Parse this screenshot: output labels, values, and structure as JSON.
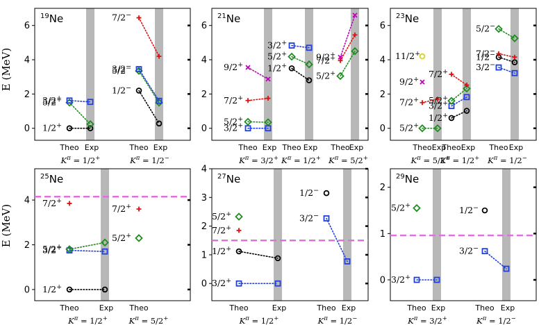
{
  "figure": {
    "ylabel": "E (MeV)",
    "colors": {
      "black": "#000000",
      "blue": "#1f3fe0",
      "green": "#1e8c1e",
      "red": "#e01010",
      "magenta": "#c000c0",
      "yellow": "#d8d020",
      "dashed": "#e070e0",
      "exp_band": "#b8b8b8"
    }
  },
  "chart_data": [
    {
      "type": "scatter",
      "nucleus": "19Ne",
      "ylim": [
        -0.7,
        7
      ],
      "yticks": [
        0,
        2,
        4,
        6
      ],
      "groups": [
        {
          "theo_label": "Theo",
          "exp_label": "Exp",
          "kpi": "Kπ = 1/2+"
        },
        {
          "theo_label": "Theo",
          "exp_label": "Exp",
          "kpi": "Kπ = 1/2−"
        }
      ],
      "series": [
        {
          "color": "black",
          "marker": "circle",
          "group": 0,
          "theo": 0.0,
          "exp": 0.0,
          "label": "1/2+"
        },
        {
          "color": "green",
          "marker": "diamond",
          "group": 0,
          "theo": 1.5,
          "exp": 0.24,
          "label": "5/2+"
        },
        {
          "color": "blue",
          "marker": "square",
          "group": 0,
          "theo": 1.62,
          "exp": 1.54,
          "label": "3/2+"
        },
        {
          "color": "black",
          "marker": "circle",
          "group": 1,
          "theo": 2.2,
          "exp": 0.28,
          "label": "1/2−"
        },
        {
          "color": "green",
          "marker": "diamond",
          "group": 1,
          "theo": 3.35,
          "exp": 1.5,
          "label": "5/2−"
        },
        {
          "color": "blue",
          "marker": "square",
          "group": 1,
          "theo": 3.45,
          "exp": 1.6,
          "label": "3/2−"
        },
        {
          "color": "red",
          "marker": "plus",
          "group": 1,
          "theo": 6.45,
          "exp": 4.2,
          "label": "7/2−"
        }
      ]
    },
    {
      "type": "scatter",
      "nucleus": "21Ne",
      "ylim": [
        -0.7,
        7
      ],
      "yticks": [
        0,
        2,
        4,
        6
      ],
      "groups": [
        {
          "theo_label": "Theo",
          "exp_label": "Exp",
          "kpi": "Kπ = 3/2+"
        },
        {
          "theo_label": "Theo",
          "exp_label": "Exp",
          "kpi": "Kπ = 1/2+"
        },
        {
          "theo_label": "Theo",
          "exp_label": "Exp",
          "kpi": "Kπ = 5/2+"
        }
      ],
      "series": [
        {
          "color": "blue",
          "marker": "square",
          "group": 0,
          "theo": 0.0,
          "exp": 0.0,
          "label": "3/2+"
        },
        {
          "color": "green",
          "marker": "diamond",
          "group": 0,
          "theo": 0.38,
          "exp": 0.35,
          "label": "5/2+"
        },
        {
          "color": "red",
          "marker": "plus",
          "group": 0,
          "theo": 1.62,
          "exp": 1.75,
          "label": "7/2+"
        },
        {
          "color": "magenta",
          "marker": "cross",
          "group": 0,
          "theo": 3.55,
          "exp": 2.87,
          "label": "9/2+"
        },
        {
          "color": "black",
          "marker": "circle",
          "group": 1,
          "theo": 3.5,
          "exp": 2.8,
          "label": "1/2+"
        },
        {
          "color": "green",
          "marker": "diamond",
          "group": 1,
          "theo": 4.18,
          "exp": 3.73,
          "label": "5/2+"
        },
        {
          "color": "blue",
          "marker": "square",
          "group": 1,
          "theo": 4.83,
          "exp": 4.7,
          "label": "3/2+"
        },
        {
          "color": "green",
          "marker": "diamond",
          "group": 2,
          "theo": 3.05,
          "exp": 4.5,
          "label": "5/2+"
        },
        {
          "color": "red",
          "marker": "plus",
          "group": 2,
          "theo": 3.95,
          "exp": 5.45,
          "label": "7/2+"
        },
        {
          "color": "magenta",
          "marker": "cross",
          "group": 2,
          "theo": 4.15,
          "exp": 6.6,
          "label": "9/2+"
        }
      ]
    },
    {
      "type": "scatter",
      "nucleus": "23Ne",
      "ylim": [
        -0.7,
        7
      ],
      "yticks": [
        0,
        2,
        4,
        6
      ],
      "groups": [
        {
          "theo_label": "Theo",
          "exp_label": "Exp",
          "kpi": "Kπ = 5/2+"
        },
        {
          "theo_label": "Theo",
          "exp_label": "Exp",
          "kpi": "Kπ = 1/2+"
        },
        {
          "theo_label": "Theo",
          "exp_label": "Exp",
          "kpi": "Kπ = 1/2−"
        }
      ],
      "series": [
        {
          "color": "green",
          "marker": "diamond",
          "group": 0,
          "theo": 0.0,
          "exp": 0.0,
          "label": "5/2+"
        },
        {
          "color": "red",
          "marker": "plus",
          "group": 0,
          "theo": 1.5,
          "exp": 1.7,
          "label": "7/2+"
        },
        {
          "color": "magenta",
          "marker": "cross",
          "group": 0,
          "theo": 2.7,
          "exp": null,
          "label": "9/2+"
        },
        {
          "color": "yellow",
          "marker": "circle",
          "group": 0,
          "theo": 4.2,
          "exp": null,
          "label": "11/2+"
        },
        {
          "color": "black",
          "marker": "circle",
          "group": 1,
          "theo": 0.6,
          "exp": 1.02,
          "label": "1/2+"
        },
        {
          "color": "blue",
          "marker": "square",
          "group": 1,
          "theo": 1.3,
          "exp": 1.82,
          "label": "3/2+"
        },
        {
          "color": "green",
          "marker": "diamond",
          "group": 1,
          "theo": 1.6,
          "exp": 2.32,
          "label": "5/2+"
        },
        {
          "color": "red",
          "marker": "plus",
          "group": 1,
          "theo": 3.15,
          "exp": 2.52,
          "label": "7/2+"
        },
        {
          "color": "blue",
          "marker": "square",
          "group": 2,
          "theo": 3.55,
          "exp": 3.22,
          "label": "3/2−"
        },
        {
          "color": "black",
          "marker": "circle",
          "group": 2,
          "theo": 4.15,
          "exp": 3.85,
          "label": "1/2−"
        },
        {
          "color": "red",
          "marker": "plus",
          "group": 2,
          "theo": 4.35,
          "exp": 4.15,
          "label": "7/2−"
        },
        {
          "color": "green",
          "marker": "diamond",
          "group": 2,
          "theo": 5.8,
          "exp": 5.25,
          "label": "5/2−"
        }
      ]
    },
    {
      "type": "scatter",
      "nucleus": "25Ne",
      "ylim": [
        -0.5,
        5.4
      ],
      "yticks": [
        0,
        2,
        4
      ],
      "threshold": 4.15,
      "groups": [
        {
          "theo_label": "Theo",
          "exp_label": "Exp",
          "kpi": "Kπ = 1/2+"
        },
        {
          "theo_label": "Theo",
          "exp_label": null,
          "kpi": "Kπ = 5/2+"
        }
      ],
      "series": [
        {
          "color": "black",
          "marker": "circle",
          "group": 0,
          "theo": 0.0,
          "exp": 0.0,
          "label": "1/2+"
        },
        {
          "color": "blue",
          "marker": "square",
          "group": 0,
          "theo": 1.75,
          "exp": 1.7,
          "label": "3/2+"
        },
        {
          "color": "green",
          "marker": "diamond",
          "group": 0,
          "theo": 1.8,
          "exp": 2.1,
          "label": "5/2+"
        },
        {
          "color": "red",
          "marker": "plus",
          "group": 0,
          "theo": 3.85,
          "exp": null,
          "label": "7/2+"
        },
        {
          "color": "green",
          "marker": "diamond",
          "group": 1,
          "theo": 2.3,
          "exp": null,
          "label": "5/2+"
        },
        {
          "color": "red",
          "marker": "plus",
          "group": 1,
          "theo": 3.6,
          "exp": null,
          "label": "7/2+"
        }
      ]
    },
    {
      "type": "scatter",
      "nucleus": "27Ne",
      "ylim": [
        -0.6,
        4
      ],
      "yticks": [
        0,
        1,
        2,
        3,
        4
      ],
      "threshold": 1.5,
      "groups": [
        {
          "theo_label": "Theo",
          "exp_label": "Exp",
          "kpi": "Kπ = 1/2+"
        },
        {
          "theo_label": "Theo",
          "exp_label": "Exp",
          "kpi": "Kπ = 1/2−"
        }
      ],
      "series": [
        {
          "color": "blue",
          "marker": "square",
          "group": 0,
          "theo": 0.0,
          "exp": 0.0,
          "label": "3/2+"
        },
        {
          "color": "black",
          "marker": "circle",
          "group": 0,
          "theo": 1.12,
          "exp": 0.88,
          "label": "1/2+"
        },
        {
          "color": "red",
          "marker": "plus",
          "group": 0,
          "theo": 1.85,
          "exp": null,
          "label": "7/2+"
        },
        {
          "color": "green",
          "marker": "diamond",
          "group": 0,
          "theo": 2.33,
          "exp": null,
          "label": "5/2+"
        },
        {
          "color": "blue",
          "marker": "square",
          "group": 1,
          "theo": 2.27,
          "exp": 0.77,
          "label": "3/2−"
        },
        {
          "color": "black",
          "marker": "circle",
          "group": 1,
          "theo": 3.15,
          "exp": null,
          "label": "1/2−"
        }
      ]
    },
    {
      "type": "scatter",
      "nucleus": "29Ne",
      "ylim": [
        -0.45,
        2.4
      ],
      "yticks": [
        0,
        1,
        2
      ],
      "threshold": 0.96,
      "groups": [
        {
          "theo_label": "Theo",
          "exp_label": "Exp",
          "kpi": "Kπ = 3/2+"
        },
        {
          "theo_label": "Theo",
          "exp_label": "Exp",
          "kpi": "Kπ = 1/2−"
        }
      ],
      "series": [
        {
          "color": "blue",
          "marker": "square",
          "group": 0,
          "theo": 0.0,
          "exp": 0.0,
          "label": "3/2+"
        },
        {
          "color": "green",
          "marker": "diamond",
          "group": 0,
          "theo": 1.55,
          "exp": null,
          "label": "5/2+"
        },
        {
          "color": "blue",
          "marker": "square",
          "group": 1,
          "theo": 0.62,
          "exp": 0.24,
          "label": "3/2−"
        },
        {
          "color": "black",
          "marker": "circle",
          "group": 1,
          "theo": 1.5,
          "exp": null,
          "label": "1/2−"
        }
      ]
    }
  ]
}
